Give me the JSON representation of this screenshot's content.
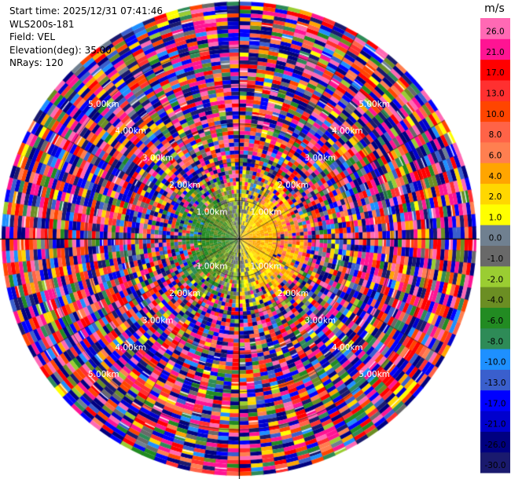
{
  "info": {
    "start_time": "Start time: 2025/12/31 07:41:46",
    "instrument": "WLS200s-181",
    "field": "Field: VEL",
    "elevation": "Elevation(deg): 35.00",
    "nrays": "NRays: 120"
  },
  "chart_data": {
    "type": "heatmap",
    "projection": "polar-ppi",
    "field": "VEL",
    "elevation_deg": 35.0,
    "n_rays": 120,
    "range_rings_km": [
      1.0,
      2.0,
      3.0,
      4.0,
      5.0
    ],
    "range_ring_labels": [
      "1.00km",
      "2.00km",
      "3.00km",
      "4.00km",
      "5.00km"
    ],
    "max_range_km": 6.2,
    "colorbar": {
      "unit": "m/s",
      "vmin": -30.0,
      "vmax": 30.0,
      "bounds": [
        -30.0,
        -26.0,
        -21.0,
        -17.0,
        -13.0,
        -10.0,
        -8.0,
        -6.0,
        -4.0,
        -2.0,
        -1.0,
        0.0,
        1.0,
        2.0,
        4.0,
        6.0,
        8.0,
        10.0,
        13.0,
        17.0,
        21.0,
        26.0,
        30.0
      ],
      "tick_labels": [
        "-30.0",
        "-26.0",
        "-21.0",
        "-17.0",
        "-13.0",
        "-10.0",
        "-8.0",
        "-6.0",
        "-4.0",
        "-2.0",
        "-1.0",
        "0.0",
        "1.0",
        "2.0",
        "4.0",
        "6.0",
        "8.0",
        "10.0",
        "13.0",
        "17.0",
        "21.0",
        "26.0"
      ],
      "colors": [
        "#1a1a6e",
        "#000080",
        "#0000cd",
        "#0000ff",
        "#3a5fcd",
        "#1e90ff",
        "#2e8b57",
        "#228b22",
        "#6b8e23",
        "#9acd32",
        "#696969",
        "#708090",
        "#ffff00",
        "#ffd700",
        "#ffa500",
        "#ff7f50",
        "#ff6347",
        "#ff4500",
        "#ff3030",
        "#ff0000",
        "#ff1493",
        "#ff69b4"
      ]
    },
    "pattern": {
      "inner_negative_side": "west",
      "inner_positive_side": "east",
      "inner_coherent_radius_km": 1.6,
      "outer": "noisy-full-spectrum"
    }
  }
}
